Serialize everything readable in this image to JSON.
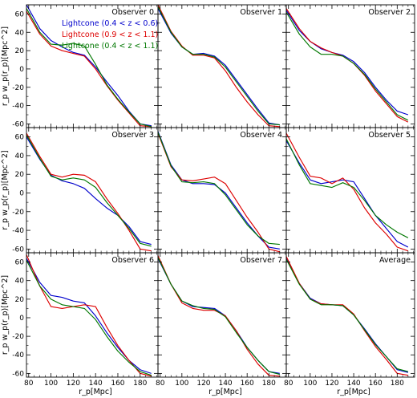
{
  "chart_data": {
    "type": "line",
    "layout": {
      "rows": 3,
      "cols": 3
    },
    "xlabel": "r_p[Mpc]",
    "ylabel": "r_p w_p(r_p)[Mpc^2]",
    "xlim": [
      78,
      196
    ],
    "ylim": [
      -64,
      70
    ],
    "xticks": [
      80,
      100,
      120,
      140,
      160,
      180
    ],
    "yticks": [
      -60,
      -40,
      -20,
      0,
      20,
      40,
      60
    ],
    "grid": false,
    "legend": {
      "location": "top-right of first panel",
      "entries": [
        {
          "label": "Lightcone (0.4 < z < 0.6)",
          "color": "#0000cc"
        },
        {
          "label": "Lightcone (0.9 < z < 1.1)",
          "color": "#dd0000"
        },
        {
          "label": "Lightcone (0.4 < z < 1.1)",
          "color": "#007700"
        }
      ]
    },
    "panels": [
      {
        "title": "Observer 0",
        "x": [
          78,
          90,
          100,
          110,
          120,
          130,
          140,
          150,
          160,
          170,
          180,
          190
        ],
        "series": [
          {
            "name": "Lightcone (0.4 < z < 0.6)",
            "color": "#0000cc",
            "y": [
              70,
              44,
              31,
              24,
              18,
              15,
              2,
              -14,
              -29,
              -46,
              -60,
              -62
            ]
          },
          {
            "name": "Lightcone (0.9 < z < 1.1)",
            "color": "#dd0000",
            "y": [
              63,
              38,
              25,
              20,
              17,
              14,
              0,
              -18,
              -34,
              -48,
              -62,
              -63
            ]
          },
          {
            "name": "Lightcone (0.4 < z < 1.1)",
            "color": "#007700",
            "y": [
              66,
              40,
              27,
              26,
              28,
              25,
              5,
              -17,
              -33,
              -47,
              -60,
              -63
            ]
          }
        ]
      },
      {
        "title": "Observer 1",
        "x": [
          78,
          90,
          100,
          110,
          120,
          130,
          140,
          150,
          160,
          170,
          180,
          190
        ],
        "series": [
          {
            "name": "Lightcone (0.4 < z < 0.6)",
            "color": "#0000cc",
            "y": [
              66,
              39,
              24,
              16,
              17,
              14,
              4,
              -12,
              -28,
              -44,
              -59,
              -61
            ]
          },
          {
            "name": "Lightcone (0.9 < z < 1.1)",
            "color": "#dd0000",
            "y": [
              70,
              41,
              25,
              15,
              15,
              12,
              -2,
              -20,
              -36,
              -50,
              -62,
              -63
            ]
          },
          {
            "name": "Lightcone (0.4 < z < 1.1)",
            "color": "#007700",
            "y": [
              68,
              40,
              24,
              16,
              16,
              13,
              2,
              -14,
              -30,
              -46,
              -60,
              -61
            ]
          }
        ]
      },
      {
        "title": "Observer 2",
        "x": [
          78,
          90,
          100,
          110,
          120,
          130,
          140,
          150,
          160,
          170,
          180,
          190
        ],
        "series": [
          {
            "name": "Lightcone (0.4 < z < 0.6)",
            "color": "#0000cc",
            "y": [
              64,
              42,
              30,
              22,
              18,
              15,
              8,
              -4,
              -20,
              -34,
              -46,
              -50
            ]
          },
          {
            "name": "Lightcone (0.9 < z < 1.1)",
            "color": "#dd0000",
            "y": [
              66,
              44,
              30,
              23,
              18,
              14,
              6,
              -7,
              -24,
              -38,
              -52,
              -58
            ]
          },
          {
            "name": "Lightcone (0.4 < z < 1.1)",
            "color": "#007700",
            "y": [
              62,
              38,
              24,
              16,
              16,
              14,
              6,
              -6,
              -22,
              -36,
              -50,
              -56
            ]
          }
        ]
      },
      {
        "title": "Observer 3",
        "x": [
          78,
          90,
          100,
          110,
          120,
          130,
          140,
          150,
          160,
          170,
          180,
          190
        ],
        "series": [
          {
            "name": "Lightcone (0.4 < z < 0.6)",
            "color": "#0000cc",
            "y": [
              60,
              36,
              19,
              13,
              10,
              5,
              -6,
              -16,
              -24,
              -36,
              -52,
              -55
            ]
          },
          {
            "name": "Lightcone (0.9 < z < 1.1)",
            "color": "#dd0000",
            "y": [
              64,
              39,
              20,
              17,
              20,
              19,
              12,
              -6,
              -22,
              -40,
              -60,
              -62
            ]
          },
          {
            "name": "Lightcone (0.4 < z < 1.1)",
            "color": "#007700",
            "y": [
              62,
              37,
              18,
              14,
              16,
              14,
              6,
              -10,
              -24,
              -38,
              -54,
              -57
            ]
          }
        ]
      },
      {
        "title": "Observer 4",
        "x": [
          78,
          90,
          100,
          110,
          120,
          130,
          140,
          150,
          160,
          170,
          180,
          190
        ],
        "series": [
          {
            "name": "Lightcone (0.4 < z < 0.6)",
            "color": "#0000cc",
            "y": [
              66,
              30,
              14,
              10,
              10,
              9,
              0,
              -16,
              -32,
              -46,
              -58,
              -60
            ]
          },
          {
            "name": "Lightcone (0.9 < z < 1.1)",
            "color": "#dd0000",
            "y": [
              64,
              28,
              14,
              13,
              15,
              17,
              10,
              -8,
              -26,
              -42,
              -60,
              -63
            ]
          },
          {
            "name": "Lightcone (0.4 < z < 1.1)",
            "color": "#007700",
            "y": [
              65,
              29,
              12,
              11,
              12,
              10,
              -2,
              -18,
              -34,
              -46,
              -54,
              -55
            ]
          }
        ]
      },
      {
        "title": "Observer 5",
        "x": [
          78,
          90,
          100,
          110,
          120,
          130,
          140,
          150,
          160,
          170,
          180,
          190
        ],
        "series": [
          {
            "name": "Lightcone (0.4 < z < 0.6)",
            "color": "#0000cc",
            "y": [
              56,
              32,
              14,
              10,
              12,
              14,
              12,
              -6,
              -24,
              -38,
              -52,
              -58
            ]
          },
          {
            "name": "Lightcone (0.9 < z < 1.1)",
            "color": "#dd0000",
            "y": [
              64,
              38,
              18,
              16,
              10,
              16,
              4,
              -16,
              -32,
              -44,
              -58,
              -62
            ]
          },
          {
            "name": "Lightcone (0.4 < z < 1.1)",
            "color": "#007700",
            "y": [
              58,
              30,
              10,
              8,
              6,
              11,
              6,
              -8,
              -24,
              -34,
              -42,
              -48
            ]
          }
        ]
      },
      {
        "title": "Observer 6",
        "x": [
          78,
          90,
          100,
          110,
          120,
          130,
          140,
          150,
          160,
          170,
          180,
          190
        ],
        "series": [
          {
            "name": "Lightcone (0.4 < z < 0.6)",
            "color": "#0000cc",
            "y": [
              64,
              38,
              24,
              22,
              18,
              16,
              2,
              -16,
              -32,
              -46,
              -56,
              -60
            ]
          },
          {
            "name": "Lightcone (0.9 < z < 1.1)",
            "color": "#dd0000",
            "y": [
              68,
              34,
              12,
              10,
              12,
              14,
              12,
              -10,
              -30,
              -46,
              -60,
              -63
            ]
          },
          {
            "name": "Lightcone (0.4 < z < 1.1)",
            "color": "#007700",
            "y": [
              62,
              34,
              20,
              14,
              12,
              10,
              -2,
              -20,
              -36,
              -48,
              -58,
              -62
            ]
          }
        ]
      },
      {
        "title": "Observer 7",
        "x": [
          78,
          90,
          100,
          110,
          120,
          130,
          140,
          150,
          160,
          170,
          180,
          190
        ],
        "series": [
          {
            "name": "Lightcone (0.4 < z < 0.6)",
            "color": "#0000cc",
            "y": [
              64,
              36,
              18,
              12,
              11,
              10,
              2,
              -14,
              -32,
              -46,
              -58,
              -60
            ]
          },
          {
            "name": "Lightcone (0.9 < z < 1.1)",
            "color": "#dd0000",
            "y": [
              67,
              36,
              16,
              10,
              8,
              8,
              2,
              -14,
              -34,
              -50,
              -62,
              -63
            ]
          },
          {
            "name": "Lightcone (0.4 < z < 1.1)",
            "color": "#007700",
            "y": [
              65,
              36,
              18,
              13,
              10,
              9,
              1,
              -16,
              -32,
              -46,
              -58,
              -61
            ]
          }
        ]
      },
      {
        "title": "Average",
        "x": [
          78,
          90,
          100,
          110,
          120,
          130,
          140,
          150,
          160,
          170,
          180,
          190
        ],
        "series": [
          {
            "name": "Lightcone (0.4 < z < 0.6)",
            "color": "#0000cc",
            "y": [
              64,
              37,
              21,
              15,
              14,
              13,
              3,
              -12,
              -28,
              -42,
              -56,
              -59
            ]
          },
          {
            "name": "Lightcone (0.9 < z < 1.1)",
            "color": "#dd0000",
            "y": [
              66,
              37,
              20,
              15,
              14,
              14,
              4,
              -14,
              -31,
              -45,
              -60,
              -62
            ]
          },
          {
            "name": "Lightcone (0.4 < z < 1.1)",
            "color": "#007700",
            "y": [
              63,
              36,
              20,
              14,
              14,
              13,
              3,
              -13,
              -29,
              -42,
              -55,
              -58
            ]
          }
        ]
      }
    ]
  }
}
